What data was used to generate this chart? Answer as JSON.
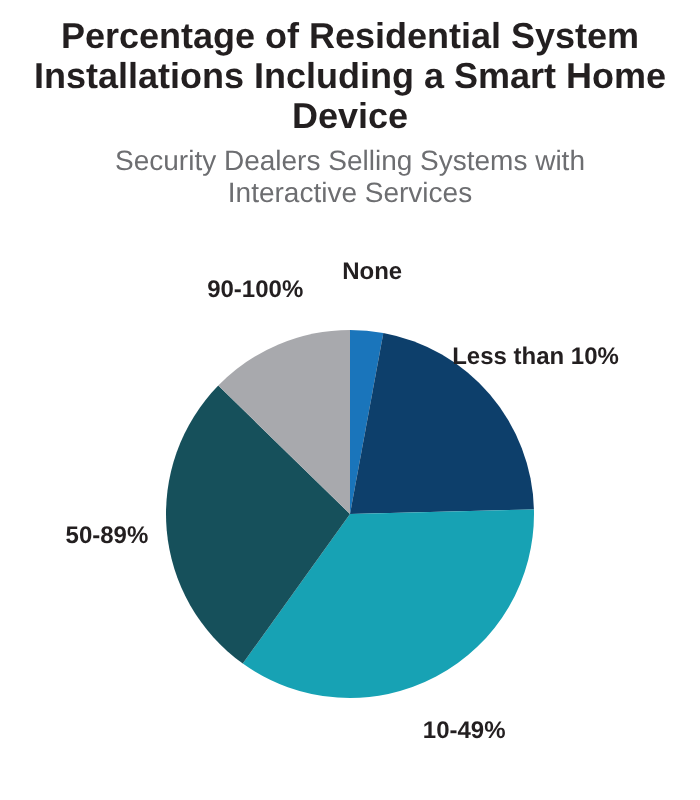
{
  "chart_data": {
    "type": "pie",
    "title": "Percentage of Residential System Installations Including a Smart Home Device",
    "subtitle": "Security Dealers Selling Systems with Interactive Services",
    "categories": [
      "None",
      "Less than 10%",
      "10-49%",
      "50-89%",
      "90-100%"
    ],
    "values": [
      2.9,
      21.7,
      35.3,
      27.4,
      12.7
    ],
    "colors": [
      "#1a75bb",
      "#0d3f6b",
      "#17a2b4",
      "#16505b",
      "#a8a9ad"
    ]
  }
}
